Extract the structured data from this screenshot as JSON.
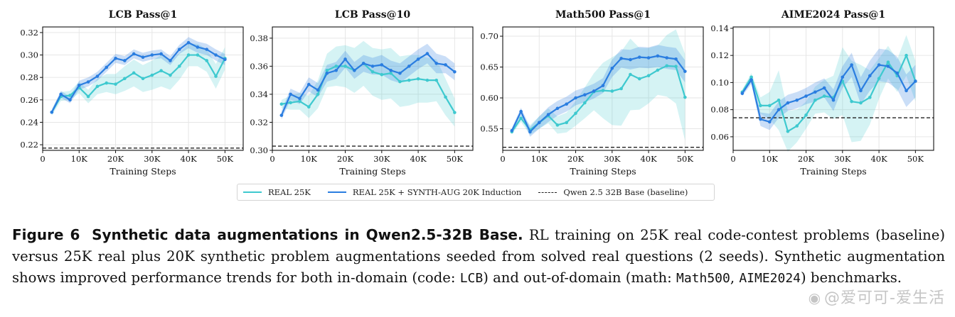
{
  "colors": {
    "real": "#3ec9cf",
    "synth": "#2a7de0",
    "baseline": "#222222",
    "grid": "#e6e6e6"
  },
  "legend": {
    "real_label": "REAL 25K",
    "synth_label": "REAL 25K + SYNTH-AUG 20K Induction",
    "baseline_label": "Qwen 2.5 32B Base (baseline)"
  },
  "chart_data": [
    {
      "type": "line",
      "title": "LCB Pass@1",
      "xlabel": "Training Steps",
      "ylabel": "",
      "xlim": [
        0,
        55000
      ],
      "ylim": [
        0.215,
        0.325
      ],
      "xticks": [
        0,
        10000,
        20000,
        30000,
        40000,
        50000
      ],
      "xtick_labels": [
        "0",
        "10K",
        "20K",
        "30K",
        "40K",
        "50K"
      ],
      "yticks": [
        0.22,
        0.24,
        0.26,
        0.28,
        0.3,
        0.32
      ],
      "ytick_labels": [
        "0.22",
        "0.24",
        "0.26",
        "0.28",
        "0.30",
        "0.32"
      ],
      "baseline": 0.217,
      "x": [
        2500,
        5000,
        7500,
        10000,
        12500,
        15000,
        17500,
        20000,
        22500,
        25000,
        27500,
        30000,
        32500,
        35000,
        37500,
        40000,
        42500,
        45000,
        47500,
        50000
      ],
      "series": [
        {
          "name": "REAL 25K",
          "values": [
            0.249,
            0.263,
            0.264,
            0.271,
            0.263,
            0.272,
            0.275,
            0.274,
            0.279,
            0.284,
            0.279,
            0.282,
            0.286,
            0.282,
            0.29,
            0.3,
            0.3,
            0.295,
            0.281,
            0.297
          ],
          "band": [
            0.003,
            0.004,
            0.004,
            0.005,
            0.006,
            0.007,
            0.008,
            0.009,
            0.011,
            0.012,
            0.012,
            0.013,
            0.014,
            0.013,
            0.012,
            0.01,
            0.01,
            0.01,
            0.011,
            0.01
          ]
        },
        {
          "name": "REAL 25K + SYNTH-AUG 20K Induction",
          "values": [
            0.249,
            0.265,
            0.26,
            0.273,
            0.276,
            0.281,
            0.289,
            0.297,
            0.295,
            0.301,
            0.298,
            0.3,
            0.301,
            0.295,
            0.305,
            0.311,
            0.307,
            0.305,
            0.3,
            0.296
          ],
          "band": [
            0.002,
            0.003,
            0.003,
            0.004,
            0.004,
            0.004,
            0.004,
            0.004,
            0.004,
            0.004,
            0.004,
            0.004,
            0.004,
            0.004,
            0.004,
            0.005,
            0.005,
            0.005,
            0.005,
            0.005
          ]
        }
      ]
    },
    {
      "type": "line",
      "title": "LCB Pass@10",
      "xlabel": "Training Steps",
      "ylabel": "",
      "xlim": [
        0,
        55000
      ],
      "ylim": [
        0.3,
        0.388
      ],
      "xticks": [
        0,
        10000,
        20000,
        30000,
        40000,
        50000
      ],
      "xtick_labels": [
        "0",
        "10K",
        "20K",
        "30K",
        "40K",
        "50K"
      ],
      "yticks": [
        0.3,
        0.32,
        0.34,
        0.36,
        0.38
      ],
      "ytick_labels": [
        "0.30",
        "0.32",
        "0.34",
        "0.36",
        "0.38"
      ],
      "baseline": 0.303,
      "x": [
        2500,
        5000,
        7500,
        10000,
        12500,
        15000,
        17500,
        20000,
        22500,
        25000,
        27500,
        30000,
        32500,
        35000,
        37500,
        40000,
        42500,
        45000,
        47500,
        50000
      ],
      "series": [
        {
          "name": "REAL 25K",
          "values": [
            0.333,
            0.334,
            0.335,
            0.331,
            0.34,
            0.357,
            0.36,
            0.36,
            0.357,
            0.362,
            0.356,
            0.354,
            0.355,
            0.349,
            0.35,
            0.351,
            0.35,
            0.35,
            0.338,
            0.327
          ],
          "band": [
            0.003,
            0.005,
            0.006,
            0.008,
            0.01,
            0.012,
            0.014,
            0.015,
            0.016,
            0.016,
            0.017,
            0.018,
            0.018,
            0.018,
            0.018,
            0.017,
            0.016,
            0.015,
            0.013,
            0.01
          ]
        },
        {
          "name": "REAL 25K + SYNTH-AUG 20K Induction",
          "values": [
            0.325,
            0.34,
            0.337,
            0.347,
            0.343,
            0.355,
            0.357,
            0.365,
            0.357,
            0.362,
            0.36,
            0.361,
            0.357,
            0.355,
            0.36,
            0.365,
            0.369,
            0.362,
            0.361,
            0.356
          ],
          "band": [
            0.003,
            0.004,
            0.004,
            0.005,
            0.005,
            0.006,
            0.006,
            0.006,
            0.006,
            0.006,
            0.006,
            0.007,
            0.007,
            0.007,
            0.007,
            0.007,
            0.007,
            0.007,
            0.006,
            0.006
          ]
        }
      ]
    },
    {
      "type": "line",
      "title": "Math500 Pass@1",
      "xlabel": "Training Steps",
      "ylabel": "",
      "xlim": [
        0,
        55000
      ],
      "ylim": [
        0.515,
        0.715
      ],
      "xticks": [
        0,
        10000,
        20000,
        30000,
        40000,
        50000
      ],
      "xtick_labels": [
        "0",
        "10K",
        "20K",
        "30K",
        "40K",
        "50K"
      ],
      "yticks": [
        0.55,
        0.6,
        0.65,
        0.7
      ],
      "ytick_labels": [
        "0.55",
        "0.60",
        "0.65",
        "0.70"
      ],
      "baseline": 0.52,
      "x": [
        2500,
        5000,
        7500,
        10000,
        12500,
        15000,
        17500,
        20000,
        22500,
        25000,
        27500,
        30000,
        32500,
        35000,
        37500,
        40000,
        42500,
        45000,
        47500,
        50000
      ],
      "series": [
        {
          "name": "REAL 25K",
          "values": [
            0.545,
            0.567,
            0.548,
            0.56,
            0.571,
            0.556,
            0.56,
            0.575,
            0.592,
            0.61,
            0.612,
            0.611,
            0.615,
            0.638,
            0.631,
            0.636,
            0.645,
            0.652,
            0.651,
            0.601
          ],
          "band": [
            0.004,
            0.006,
            0.008,
            0.01,
            0.012,
            0.014,
            0.016,
            0.02,
            0.025,
            0.03,
            0.045,
            0.055,
            0.06,
            0.058,
            0.05,
            0.045,
            0.04,
            0.05,
            0.06,
            0.07
          ]
        },
        {
          "name": "REAL 25K + SYNTH-AUG 20K Induction",
          "values": [
            0.547,
            0.578,
            0.545,
            0.56,
            0.573,
            0.583,
            0.59,
            0.6,
            0.605,
            0.611,
            0.62,
            0.648,
            0.664,
            0.662,
            0.666,
            0.665,
            0.668,
            0.665,
            0.663,
            0.643
          ],
          "band": [
            0.004,
            0.006,
            0.008,
            0.01,
            0.012,
            0.012,
            0.012,
            0.012,
            0.012,
            0.012,
            0.012,
            0.014,
            0.015,
            0.016,
            0.017,
            0.017,
            0.018,
            0.018,
            0.018,
            0.018
          ]
        }
      ]
    },
    {
      "type": "line",
      "title": "AIME2024 Pass@1",
      "xlabel": "Training Steps",
      "ylabel": "",
      "xlim": [
        0,
        55000
      ],
      "ylim": [
        0.05,
        0.141
      ],
      "xticks": [
        0,
        10000,
        20000,
        30000,
        40000,
        50000
      ],
      "xtick_labels": [
        "0",
        "10K",
        "20K",
        "30K",
        "40K",
        "50K"
      ],
      "yticks": [
        0.06,
        0.08,
        0.1,
        0.12,
        0.14
      ],
      "ytick_labels": [
        "0.06",
        "0.08",
        "0.10",
        "0.12",
        "0.14"
      ],
      "baseline": 0.074,
      "x": [
        2500,
        5000,
        7500,
        10000,
        12500,
        15000,
        17500,
        20000,
        22500,
        25000,
        27500,
        30000,
        32500,
        35000,
        37500,
        40000,
        42500,
        45000,
        47500,
        50000
      ],
      "series": [
        {
          "name": "REAL 25K",
          "values": [
            0.093,
            0.104,
            0.083,
            0.083,
            0.087,
            0.064,
            0.068,
            0.076,
            0.087,
            0.09,
            0.089,
            0.101,
            0.086,
            0.085,
            0.089,
            0.103,
            0.115,
            0.105,
            0.12,
            0.101
          ],
          "band": [
            0.002,
            0.003,
            0.006,
            0.01,
            0.022,
            0.015,
            0.012,
            0.01,
            0.01,
            0.012,
            0.016,
            0.025,
            0.03,
            0.028,
            0.02,
            0.015,
            0.012,
            0.012,
            0.015,
            0.015
          ]
        },
        {
          "name": "REAL 25K + SYNTH-AUG 20K Induction",
          "values": [
            0.092,
            0.102,
            0.073,
            0.071,
            0.08,
            0.085,
            0.087,
            0.09,
            0.093,
            0.096,
            0.087,
            0.104,
            0.113,
            0.094,
            0.105,
            0.113,
            0.112,
            0.107,
            0.094,
            0.101
          ],
          "band": [
            0.002,
            0.003,
            0.005,
            0.006,
            0.006,
            0.006,
            0.006,
            0.006,
            0.007,
            0.007,
            0.008,
            0.008,
            0.009,
            0.01,
            0.011,
            0.012,
            0.012,
            0.012,
            0.012,
            0.012
          ]
        }
      ]
    }
  ],
  "caption": {
    "fig_label": "Figure 6",
    "fig_title": "Synthetic data augmentations in Qwen2.5-32B Base.",
    "text_1": " RL training on 25K real code-contest problems (baseline) versus 25K real plus 20K synthetic problem augmentations seeded from solved real questions (2 seeds). Synthetic augmentation shows improved performance trends for both in-domain (code: ",
    "code_lcb": "LCB",
    "text_2": ") and out-of-domain (math: ",
    "code_math500": "Math500",
    "text_3": ", ",
    "code_aime": "AIME2024",
    "text_4": ") benchmarks."
  },
  "watermark": {
    "icon": "weibo-icon",
    "text": "@爱可可-爱生活"
  }
}
